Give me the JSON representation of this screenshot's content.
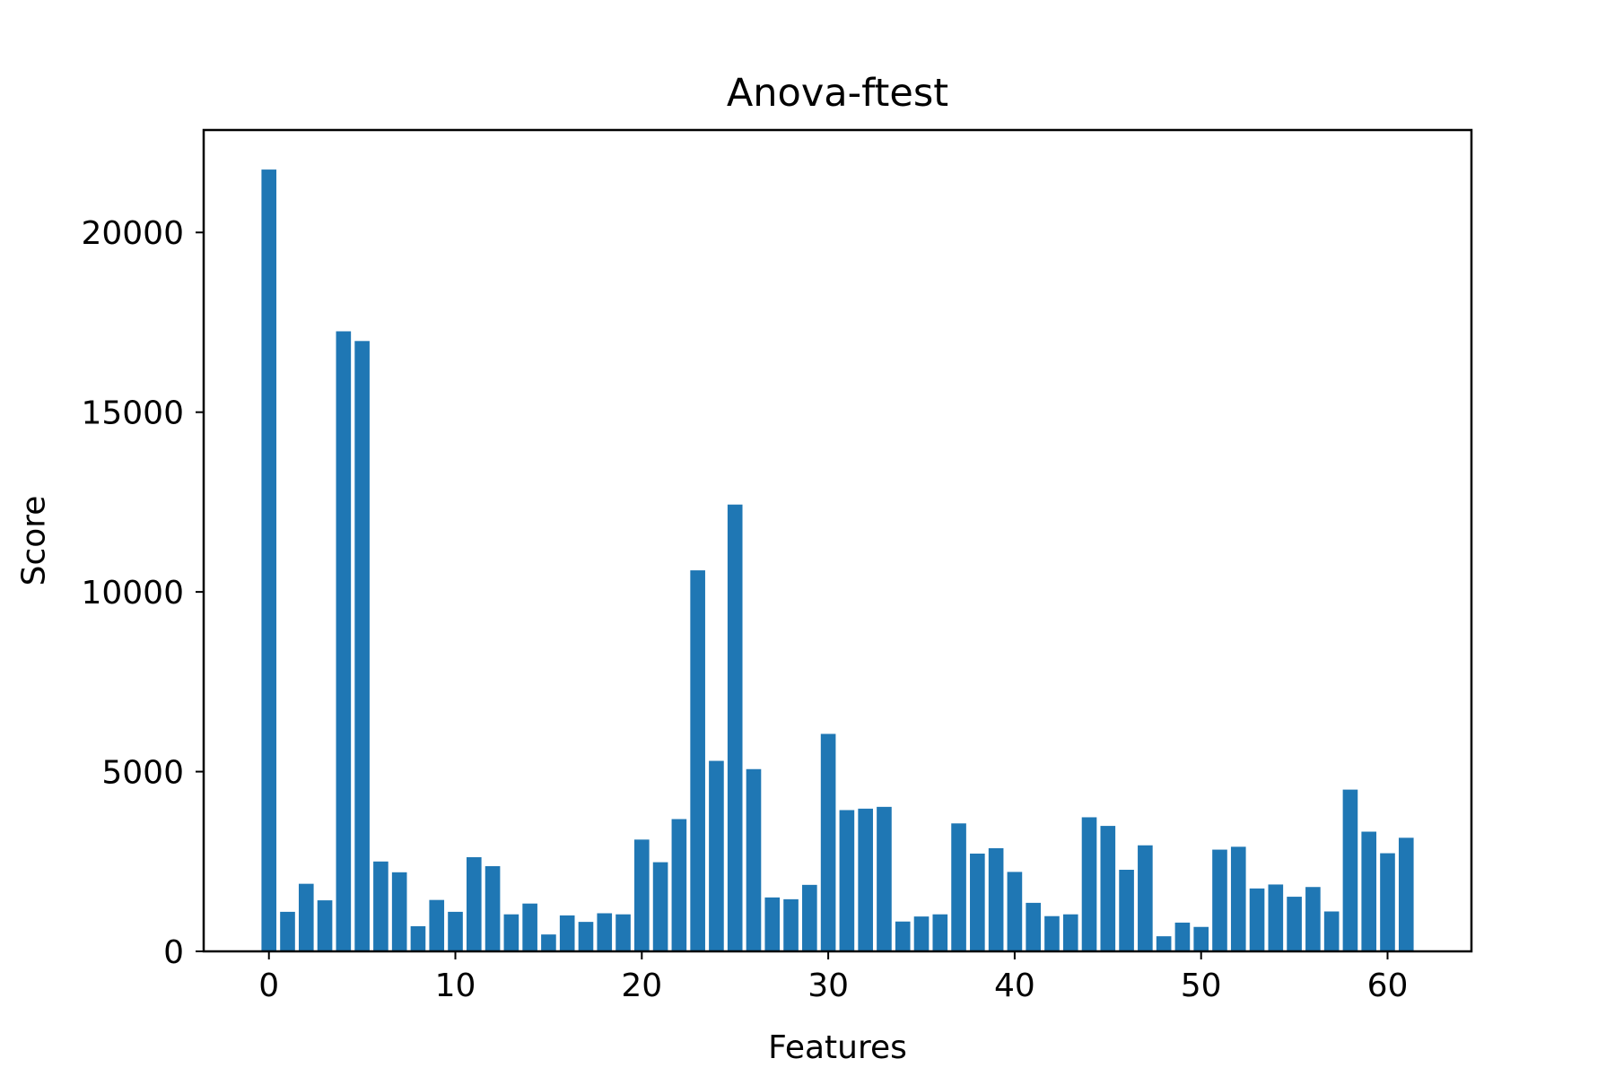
{
  "chart_data": {
    "type": "bar",
    "title": "Anova-ftest",
    "xlabel": "Features",
    "ylabel": "Score",
    "x": [
      0,
      1,
      2,
      3,
      4,
      5,
      6,
      7,
      8,
      9,
      10,
      11,
      12,
      13,
      14,
      15,
      16,
      17,
      18,
      19,
      20,
      21,
      22,
      23,
      24,
      25,
      26,
      27,
      28,
      29,
      30,
      31,
      32,
      33,
      34,
      35,
      36,
      37,
      38,
      39,
      40,
      41,
      42,
      43,
      44,
      45,
      46,
      47,
      48,
      49,
      50,
      51,
      52,
      53,
      54,
      55,
      56,
      57,
      58,
      59,
      60,
      61
    ],
    "values": [
      21750,
      1100,
      1880,
      1420,
      17250,
      16980,
      2500,
      2200,
      700,
      1430,
      1100,
      2620,
      2370,
      1030,
      1330,
      470,
      1000,
      820,
      1060,
      1030,
      3110,
      2480,
      3680,
      10600,
      5300,
      12430,
      5070,
      1500,
      1450,
      1850,
      6050,
      3930,
      3970,
      4020,
      830,
      970,
      1030,
      3560,
      2720,
      2870,
      2210,
      1350,
      980,
      1030,
      3730,
      3490,
      2270,
      2950,
      420,
      800,
      680,
      2830,
      2910,
      1750,
      1860,
      1520,
      1790,
      1110,
      4500,
      3330,
      2730,
      3160
    ],
    "xlim": [
      -3.5,
      64.5
    ],
    "ylim": [
      0,
      22850
    ],
    "xticks": [
      0,
      10,
      20,
      30,
      40,
      50,
      60
    ],
    "xtick_labels": [
      "0",
      "10",
      "20",
      "30",
      "40",
      "50",
      "60"
    ],
    "yticks": [
      0,
      5000,
      10000,
      15000,
      20000
    ],
    "ytick_labels": [
      "0",
      "5000",
      "10000",
      "15000",
      "20000"
    ],
    "grid": false,
    "legend": "none",
    "bar_color": "#1f77b4"
  }
}
